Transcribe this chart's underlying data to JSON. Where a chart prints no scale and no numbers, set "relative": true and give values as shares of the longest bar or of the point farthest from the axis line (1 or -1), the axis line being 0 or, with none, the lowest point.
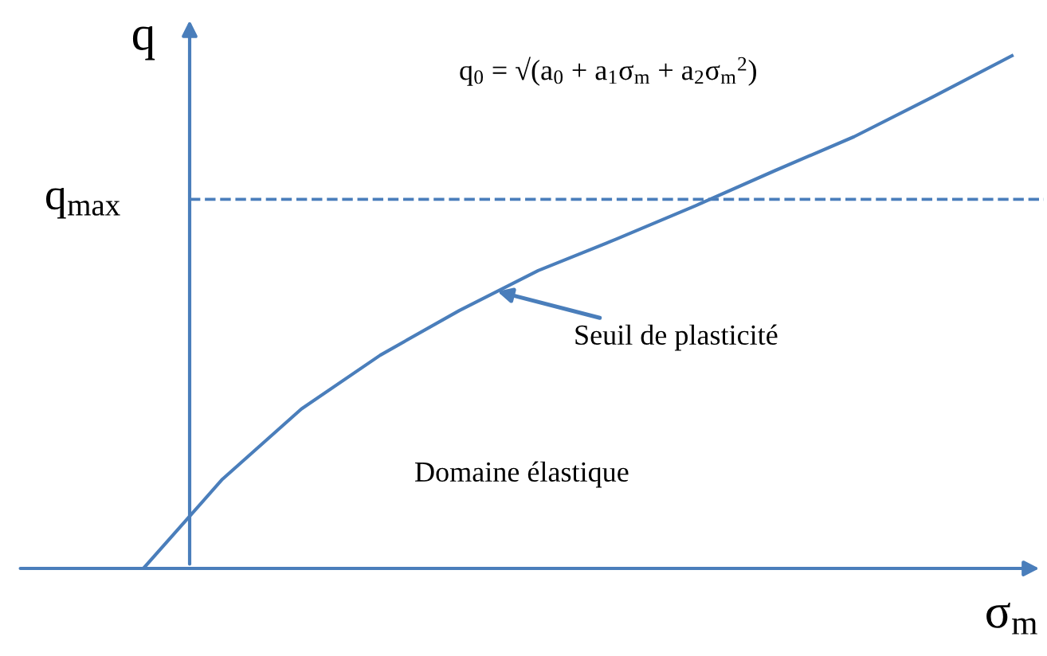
{
  "chart_data": {
    "type": "line",
    "relative": true,
    "xlabel": "σ$_{m}$",
    "ylabel": "q",
    "categories": [
      null,
      null,
      null,
      null,
      null,
      null,
      null,
      null,
      null,
      null,
      null,
      null
    ],
    "series": [
      {
        "color": "#4a7ebb",
        "values": [
          0,
          0.174,
          0.311,
          0.416,
          0.503,
          0.581,
          0.643,
          0.708,
          0.776,
          0.842,
          0.92,
          1.0
        ]
      }
    ],
    "ref_lines": [
      {
        "axis": "y",
        "value": 0.72,
        "label": "q$_{max}$",
        "color": "#4a7ebb",
        "line_style": "dashed"
      }
    ],
    "annotations": [
      "q$_{0}$ = √(a$_{0}$ + a$_{1}$σ$_{m}$ + a$_{2}$σ$_{m}$$^{2}$)",
      "Seuil de plasticité",
      "Domaine élastique"
    ],
    "grid": false,
    "marker": "none",
    "line_style": "solid"
  }
}
